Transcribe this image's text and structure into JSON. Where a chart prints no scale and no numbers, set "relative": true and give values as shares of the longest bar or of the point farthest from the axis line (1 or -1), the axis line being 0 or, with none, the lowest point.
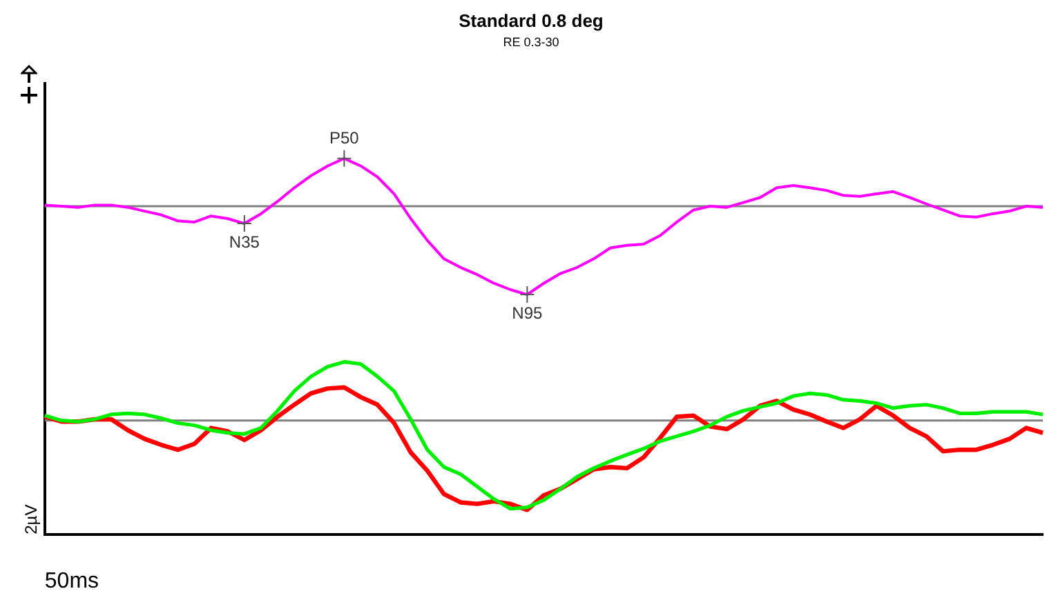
{
  "chart_data": {
    "type": "line",
    "title": "Standard 0.8 deg",
    "subtitle": "RE 0.3-30",
    "xlabel": "50ms",
    "ylabel": "2µV",
    "relative": true,
    "legend": false,
    "grid": false,
    "marker": "none",
    "line_style": "solid",
    "categories": [
      null,
      null,
      null,
      null,
      null,
      null,
      null,
      null,
      null,
      null,
      null,
      null,
      null,
      null,
      null,
      null,
      null,
      null,
      null,
      null,
      null,
      null,
      null,
      null,
      null,
      null,
      null,
      null,
      null,
      null,
      null,
      null,
      null,
      null,
      null,
      null,
      null,
      null,
      null,
      null,
      null,
      null,
      null,
      null,
      null,
      null,
      null,
      null,
      null,
      null,
      null,
      null,
      null,
      null,
      null,
      null,
      null,
      null,
      null,
      null,
      null
    ],
    "series": [
      {
        "color": "#ff00ff",
        "values": [
          0.876,
          0.873,
          0.87,
          0.876,
          0.876,
          0.87,
          0.86,
          0.85,
          0.834,
          0.831,
          0.847,
          0.84,
          0.827,
          0.853,
          0.886,
          0.922,
          0.954,
          0.98,
          1,
          0.98,
          0.951,
          0.906,
          0.84,
          0.782,
          0.733,
          0.71,
          0.691,
          0.668,
          0.651,
          0.638,
          0.668,
          0.694,
          0.71,
          0.733,
          0.762,
          0.769,
          0.772,
          0.795,
          0.831,
          0.863,
          0.873,
          0.87,
          0.883,
          0.896,
          0.922,
          0.928,
          0.922,
          0.915,
          0.902,
          0.899,
          0.906,
          0.912,
          0.896,
          0.879,
          0.863,
          0.847,
          0.844,
          0.853,
          0.86,
          0.873,
          0.87
        ]
      },
      {
        "color": "#00ee00",
        "values": [
          0.316,
          0.303,
          0.3,
          0.306,
          0.319,
          0.322,
          0.319,
          0.309,
          0.296,
          0.29,
          0.277,
          0.27,
          0.267,
          0.283,
          0.329,
          0.381,
          0.42,
          0.446,
          0.459,
          0.453,
          0.42,
          0.381,
          0.306,
          0.225,
          0.179,
          0.16,
          0.127,
          0.094,
          0.068,
          0.072,
          0.091,
          0.121,
          0.153,
          0.176,
          0.195,
          0.212,
          0.228,
          0.248,
          0.261,
          0.274,
          0.29,
          0.313,
          0.329,
          0.339,
          0.349,
          0.368,
          0.375,
          0.371,
          0.358,
          0.355,
          0.349,
          0.336,
          0.342,
          0.345,
          0.336,
          0.322,
          0.322,
          0.326,
          0.326,
          0.326,
          0.319
        ]
      },
      {
        "color": "#ff0000",
        "values": [
          0.313,
          0.3,
          0.3,
          0.306,
          0.306,
          0.277,
          0.254,
          0.238,
          0.225,
          0.241,
          0.283,
          0.274,
          0.251,
          0.277,
          0.313,
          0.345,
          0.375,
          0.388,
          0.391,
          0.365,
          0.345,
          0.296,
          0.218,
          0.169,
          0.107,
          0.085,
          0.081,
          0.088,
          0.081,
          0.065,
          0.104,
          0.121,
          0.147,
          0.173,
          0.179,
          0.176,
          0.205,
          0.257,
          0.313,
          0.316,
          0.287,
          0.28,
          0.306,
          0.342,
          0.355,
          0.332,
          0.319,
          0.3,
          0.283,
          0.306,
          0.342,
          0.316,
          0.283,
          0.261,
          0.221,
          0.225,
          0.225,
          0.238,
          0.254,
          0.283,
          0.27
        ]
      }
    ],
    "ref_lines": [
      {
        "axis": "y",
        "value": 0.873,
        "color": "#808080"
      },
      {
        "axis": "y",
        "value": 0.303,
        "color": "#808080"
      }
    ],
    "annotations": [
      {
        "text": "N35",
        "y": 0.827
      },
      {
        "text": "P50",
        "y": 1
      },
      {
        "text": "N95",
        "y": 0.638
      }
    ]
  }
}
